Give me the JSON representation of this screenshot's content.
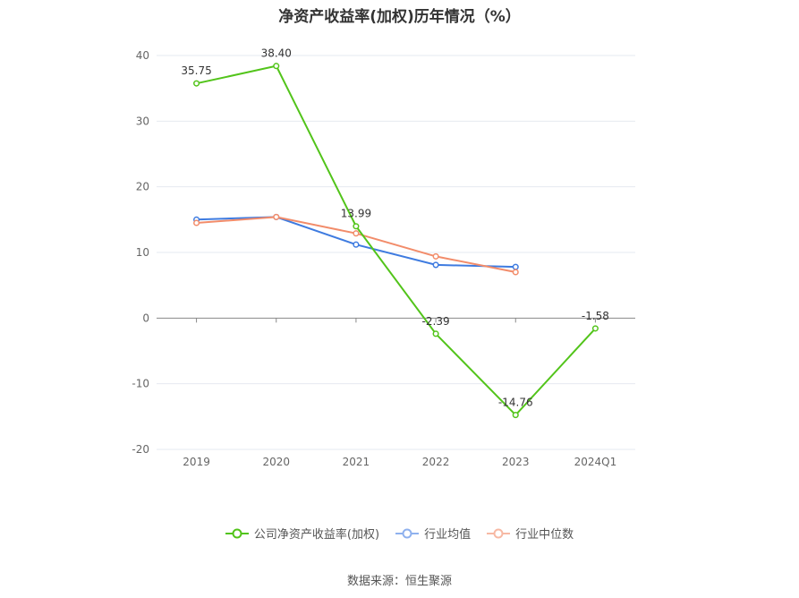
{
  "chart_data": {
    "type": "line",
    "title": "净资产收益率(加权)历年情况（%）",
    "categories": [
      "2019",
      "2020",
      "2021",
      "2022",
      "2023",
      "2024Q1"
    ],
    "ylim": [
      -20,
      40
    ],
    "yticks": [
      -20,
      -10,
      0,
      10,
      20,
      30,
      40
    ],
    "grid": true,
    "legend_position": "bottom",
    "series": [
      {
        "name": "公司净资产收益率(加权)",
        "color": "#52c41a",
        "values": [
          35.75,
          38.4,
          13.99,
          -2.39,
          -14.76,
          -1.58
        ],
        "labels": [
          "35.75",
          "38.40",
          "13.99",
          "-2.39",
          "-14.76",
          "-1.58"
        ]
      },
      {
        "name": "行业均值",
        "color": "#3e7be0",
        "values": [
          15.0,
          15.4,
          11.2,
          8.1,
          7.8,
          null
        ]
      },
      {
        "name": "行业中位数",
        "color": "#f28c6a",
        "values": [
          14.5,
          15.4,
          12.9,
          9.4,
          7.0,
          null
        ]
      }
    ]
  },
  "source": "数据来源：恒生聚源"
}
